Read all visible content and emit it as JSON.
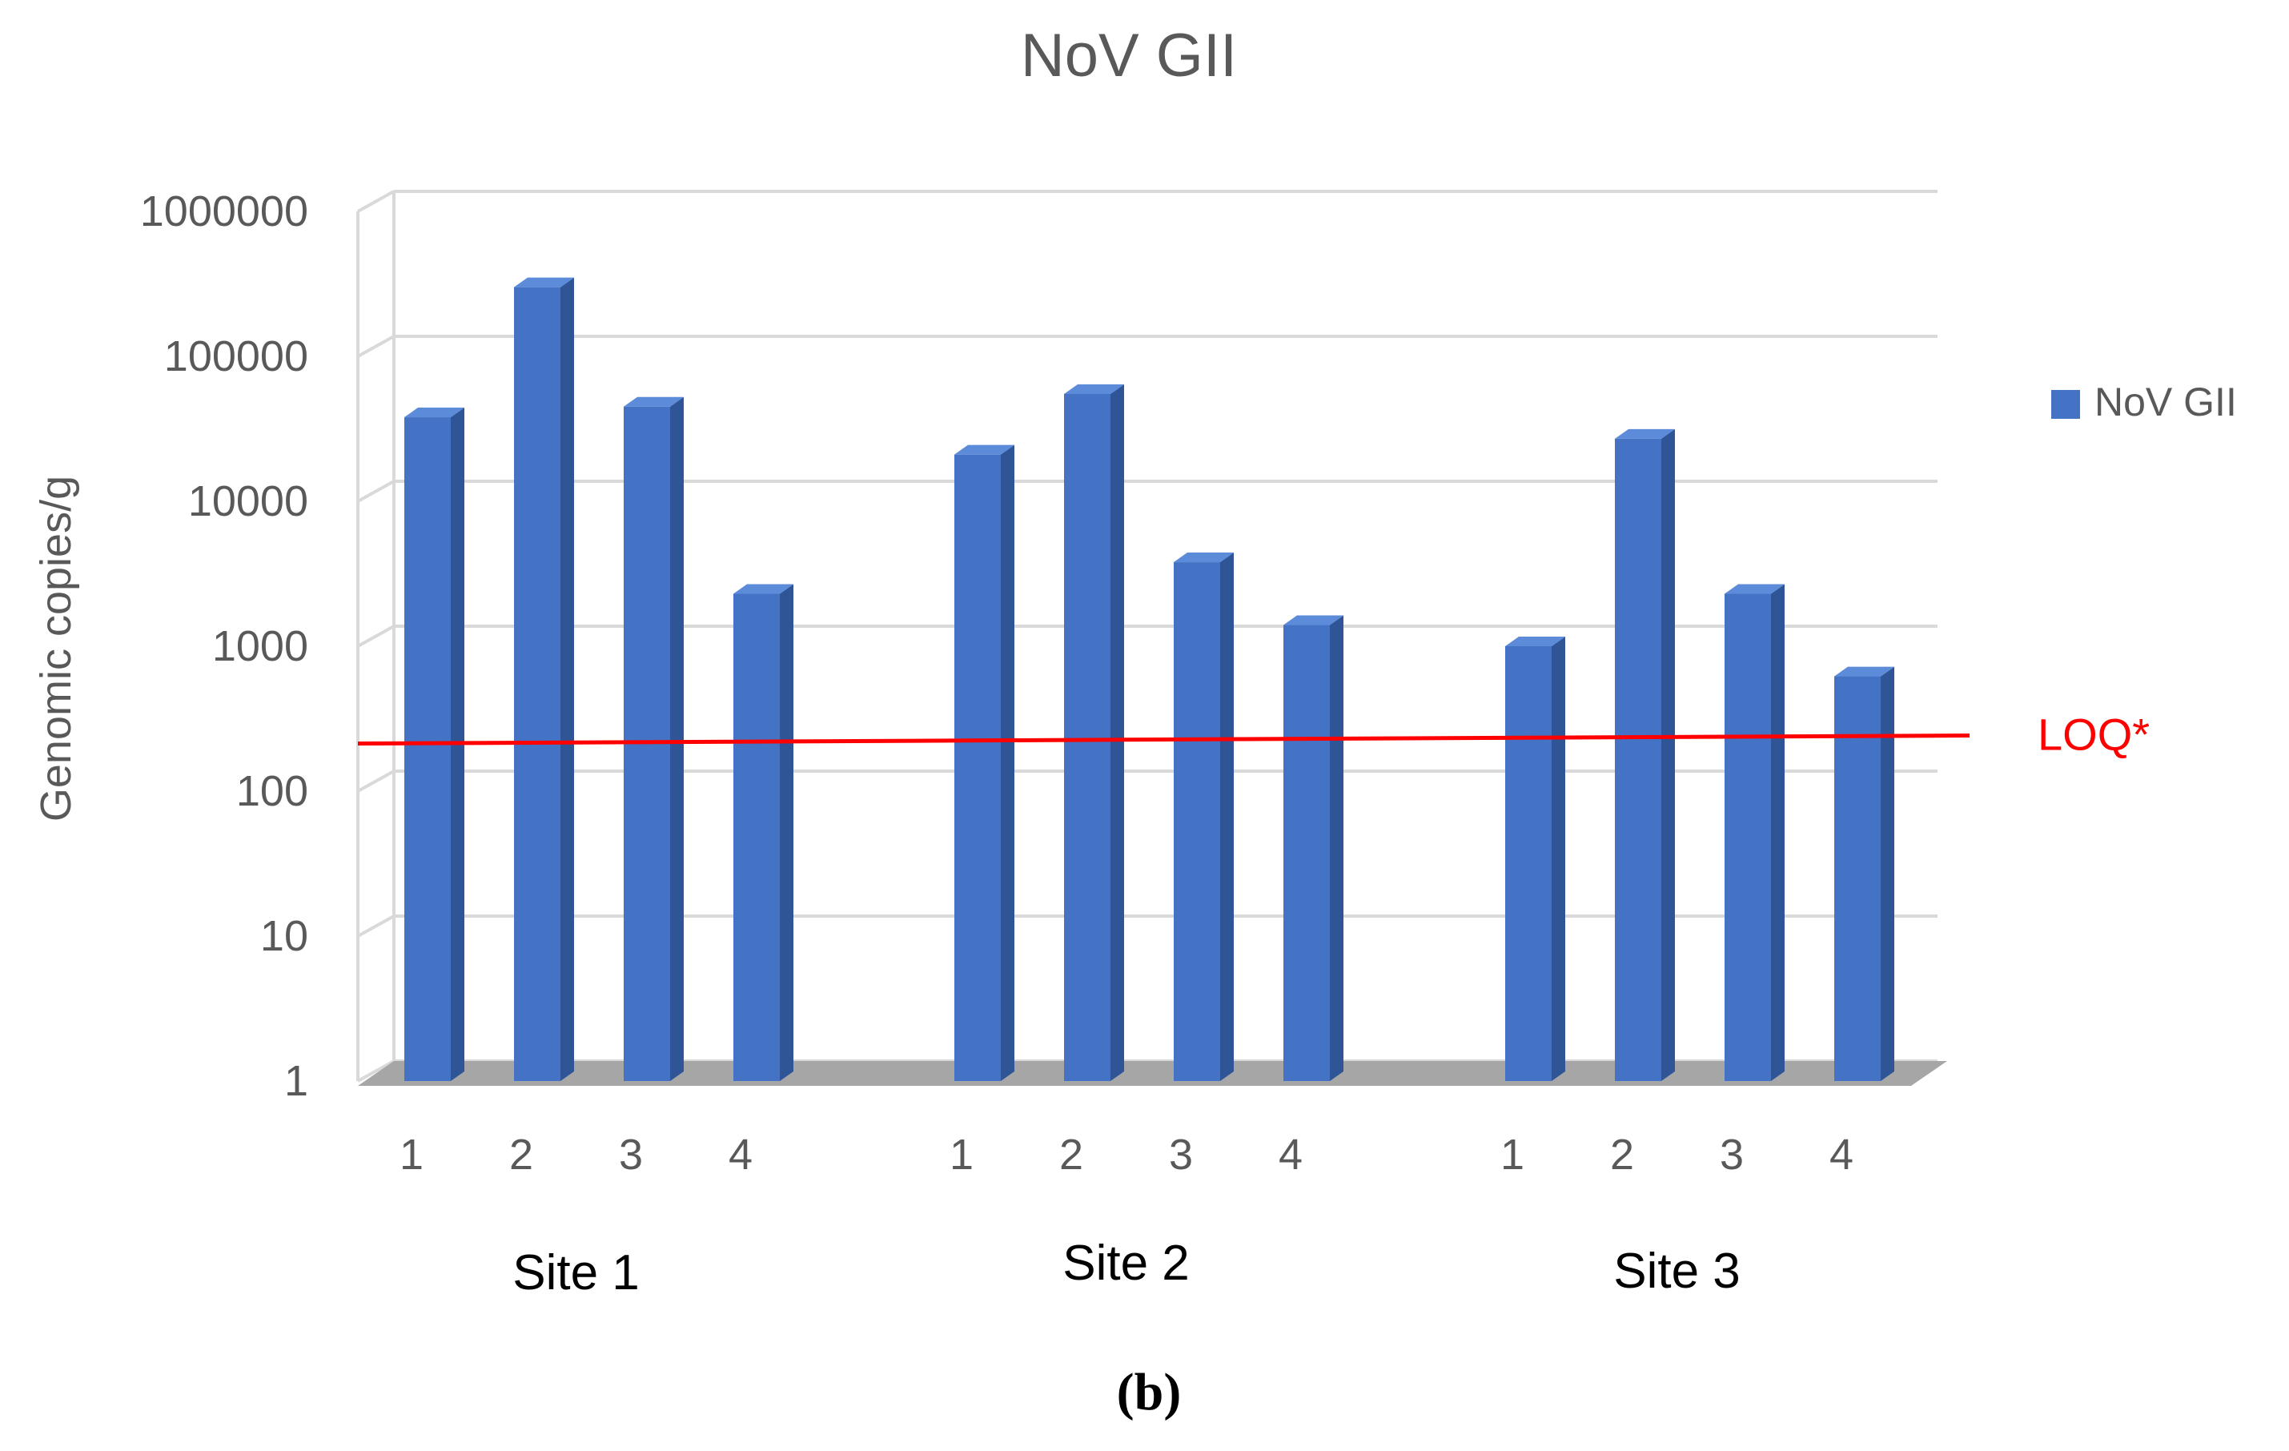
{
  "chart_data": {
    "type": "bar",
    "title": "NoV GII",
    "ylabel": "Genomic copies/g",
    "xlabel": "",
    "yscale": "log",
    "ylim": [
      1,
      1000000
    ],
    "yticks": [
      "1",
      "10",
      "100",
      "1000",
      "10000",
      "100000",
      "1000000"
    ],
    "ytick_values": [
      1,
      10,
      100,
      1000,
      10000,
      100000,
      1000000
    ],
    "groups": [
      {
        "label": "Site 1",
        "categories": [
          "1",
          "2",
          "3",
          "4"
        ],
        "values": [
          38000,
          300000,
          45000,
          2300
        ]
      },
      {
        "label": "Site 2",
        "categories": [
          "1",
          "2",
          "3",
          "4"
        ],
        "values": [
          21000,
          55000,
          3800,
          1400
        ]
      },
      {
        "label": "Site 3",
        "categories": [
          "1",
          "2",
          "3",
          "4"
        ],
        "values": [
          1000,
          27000,
          2300,
          620
        ]
      }
    ],
    "series": [
      {
        "name": "NoV GII",
        "color": "#4472c4"
      }
    ],
    "legend": {
      "position": "right",
      "entries": [
        "NoV GII"
      ]
    },
    "reference_line": {
      "label": "LOQ*",
      "value": 230,
      "color": "#ff0000"
    },
    "grid": true,
    "panel_label": "(b)",
    "colors": {
      "bar_front": "#4472c4",
      "bar_side": "#2f5597",
      "bar_top": "#5b8bd9",
      "grid": "#d9d9d9",
      "floor": "#a6a6a6",
      "axis_text": "#595959"
    }
  }
}
